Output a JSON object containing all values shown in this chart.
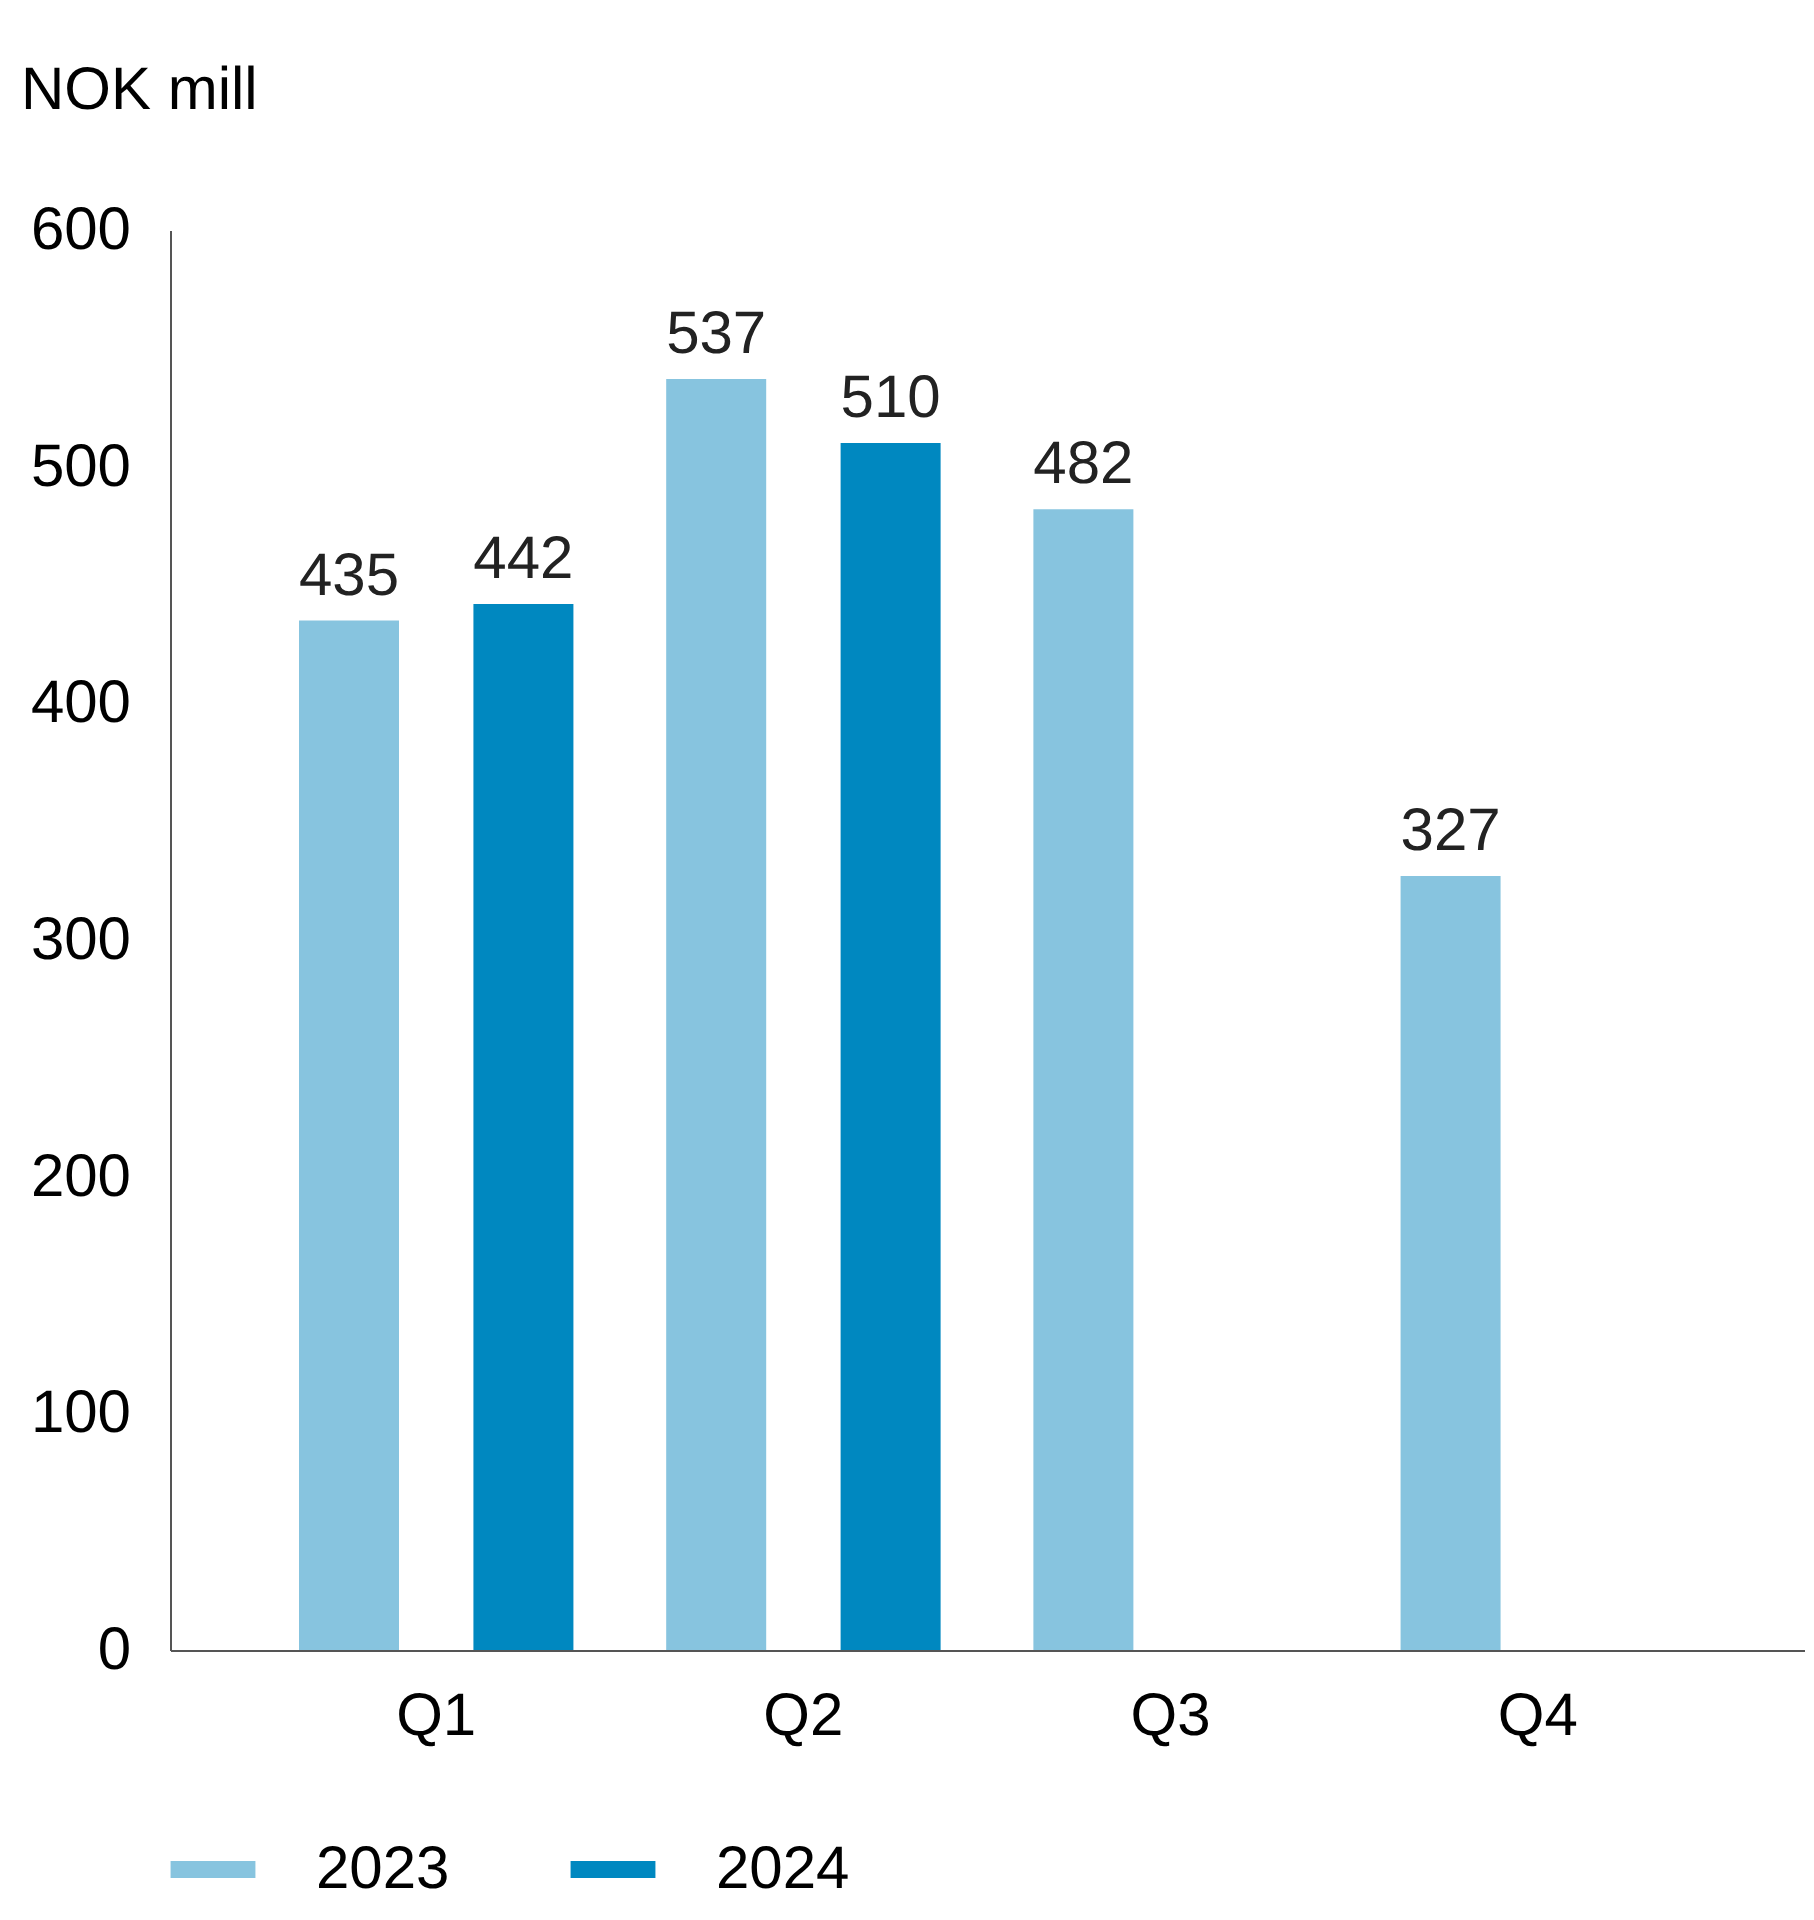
{
  "chart_data": {
    "type": "bar",
    "ylabel": "NOK mill",
    "categories": [
      "Q1",
      "Q2",
      "Q3",
      "Q4"
    ],
    "series": [
      {
        "name": "2023",
        "color": "#87c4df",
        "values": [
          435,
          537,
          482,
          327
        ]
      },
      {
        "name": "2024",
        "color": "#0088c0",
        "values": [
          442,
          510,
          null,
          null
        ]
      }
    ],
    "ylim": [
      0,
      600
    ],
    "yticks": [
      0,
      100,
      200,
      300,
      400,
      500,
      600
    ],
    "grid": false,
    "legend": "bottom",
    "data_labels": true
  }
}
